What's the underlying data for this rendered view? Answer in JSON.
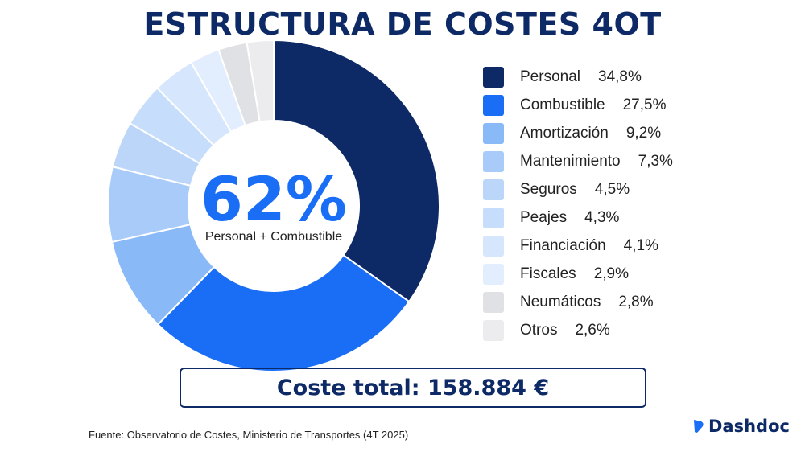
{
  "chart_data": {
    "type": "pie",
    "title": "ESTRUCTURA DE COSTES 4OT",
    "center_value": "62%",
    "center_label": "Personal + Combustible",
    "legend_position": "right",
    "series": [
      {
        "name": "Personal",
        "value": 34.8,
        "label": "34,8%",
        "color": "#0d2a66"
      },
      {
        "name": "Combustible",
        "value": 27.5,
        "label": "27,5%",
        "color": "#1a6ef5"
      },
      {
        "name": "Amortización",
        "value": 9.2,
        "label": "9,2%",
        "color": "#8ab9f7"
      },
      {
        "name": "Mantenimiento",
        "value": 7.3,
        "label": "7,3%",
        "color": "#a8cbf9"
      },
      {
        "name": "Seguros",
        "value": 4.5,
        "label": "4,5%",
        "color": "#bcd6fa"
      },
      {
        "name": "Peajes",
        "value": 4.3,
        "label": "4,3%",
        "color": "#c6ddfb"
      },
      {
        "name": "Financiación",
        "value": 4.1,
        "label": "4,1%",
        "color": "#d6e6fc"
      },
      {
        "name": "Fiscales",
        "value": 2.9,
        "label": "2,9%",
        "color": "#e2edfd"
      },
      {
        "name": "Neumáticos",
        "value": 2.8,
        "label": "2,8%",
        "color": "#e0e1e5"
      },
      {
        "name": "Otros",
        "value": 2.6,
        "label": "2,6%",
        "color": "#ececee"
      }
    ]
  },
  "total_label": "Coste total: 158.884 €",
  "source": "Fuente: Observatorio de Costes, Ministerio de Transportes (4T 2025)",
  "brand": {
    "name": "Dashdoc",
    "icon": "dashdoc-logo-icon",
    "color": "#1a6ef5"
  }
}
